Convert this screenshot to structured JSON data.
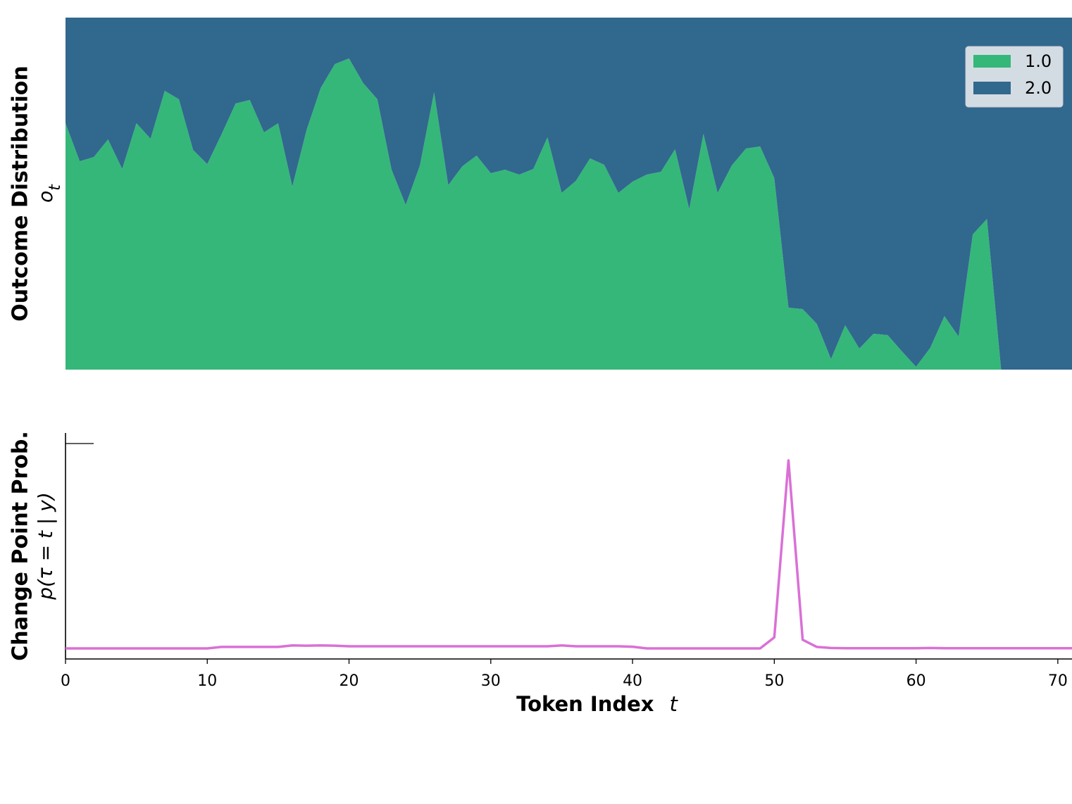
{
  "chart_data": [
    {
      "type": "stacked_area",
      "ylabel": "Outcome Distribution",
      "ylabel_symbol": [
        "o",
        "t"
      ],
      "x": [
        0,
        1,
        2,
        3,
        4,
        5,
        6,
        7,
        8,
        9,
        10,
        11,
        12,
        13,
        14,
        15,
        16,
        17,
        18,
        19,
        20,
        21,
        22,
        23,
        24,
        25,
        26,
        27,
        28,
        29,
        30,
        31,
        32,
        33,
        34,
        35,
        36,
        37,
        38,
        39,
        40,
        41,
        42,
        43,
        44,
        45,
        46,
        47,
        48,
        49,
        50,
        51,
        52,
        53,
        54,
        55,
        56,
        57,
        58,
        59,
        60,
        61,
        62,
        63,
        64,
        65,
        66,
        67,
        68,
        69,
        70,
        71
      ],
      "xlim": [
        0,
        71
      ],
      "ylim": [
        0,
        1
      ],
      "legend": "upper right",
      "series": [
        {
          "name": "1.0",
          "color": "#35b779",
          "values": [
            0.7,
            0.592,
            0.604,
            0.654,
            0.57,
            0.7,
            0.656,
            0.792,
            0.768,
            0.624,
            0.584,
            0.668,
            0.756,
            0.766,
            0.674,
            0.7,
            0.52,
            0.68,
            0.8,
            0.868,
            0.884,
            0.814,
            0.768,
            0.568,
            0.468,
            0.58,
            0.788,
            0.524,
            0.578,
            0.608,
            0.558,
            0.568,
            0.554,
            0.57,
            0.66,
            0.502,
            0.536,
            0.6,
            0.582,
            0.502,
            0.534,
            0.554,
            0.562,
            0.626,
            0.456,
            0.67,
            0.502,
            0.58,
            0.628,
            0.634,
            0.544,
            0.176,
            0.172,
            0.13,
            0.03,
            0.126,
            0.06,
            0.102,
            0.098,
            0.052,
            0.008,
            0.062,
            0.152,
            0.094,
            0.384,
            0.428,
            0,
            0,
            0,
            0,
            0,
            0
          ]
        },
        {
          "name": "2.0",
          "color": "#31688e",
          "values": [
            0.3,
            0.408,
            0.396,
            0.346,
            0.43,
            0.3,
            0.344,
            0.208,
            0.232,
            0.376,
            0.416,
            0.332,
            0.244,
            0.234,
            0.326,
            0.3,
            0.48,
            0.32,
            0.2,
            0.132,
            0.116,
            0.186,
            0.232,
            0.432,
            0.532,
            0.42,
            0.212,
            0.476,
            0.422,
            0.392,
            0.442,
            0.432,
            0.446,
            0.43,
            0.34,
            0.498,
            0.464,
            0.4,
            0.418,
            0.498,
            0.466,
            0.446,
            0.438,
            0.374,
            0.544,
            0.33,
            0.498,
            0.42,
            0.372,
            0.366,
            0.456,
            0.824,
            0.828,
            0.87,
            0.97,
            0.874,
            0.94,
            0.898,
            0.902,
            0.948,
            0.992,
            0.938,
            0.848,
            0.906,
            0.616,
            0.572,
            1,
            1,
            1,
            1,
            1,
            1
          ]
        }
      ]
    },
    {
      "type": "line",
      "ylabel": "Change Point Prob.",
      "ylabel_symbol": [
        "p(τ = t | y)"
      ],
      "xlabel": "Token Index",
      "xlabel_symbol": "t",
      "x": [
        0,
        1,
        2,
        3,
        4,
        5,
        6,
        7,
        8,
        9,
        10,
        11,
        12,
        13,
        14,
        15,
        16,
        17,
        18,
        19,
        20,
        21,
        22,
        23,
        24,
        25,
        26,
        27,
        28,
        29,
        30,
        31,
        32,
        33,
        34,
        35,
        36,
        37,
        38,
        39,
        40,
        41,
        42,
        43,
        44,
        45,
        46,
        47,
        48,
        49,
        50,
        51,
        52,
        53,
        54,
        55,
        56,
        57,
        58,
        59,
        60,
        61,
        62,
        63,
        64,
        65,
        66,
        67,
        68,
        69,
        70,
        71
      ],
      "xlim": [
        0,
        71
      ],
      "xticks": [
        0,
        10,
        20,
        30,
        40,
        50,
        60,
        70
      ],
      "ylim": [
        -0.05,
        1.02
      ],
      "series": [
        {
          "color": "#da70d6",
          "values": [
            0,
            0,
            0,
            0,
            0,
            0,
            0,
            0,
            0,
            0,
            0,
            0.007,
            0.007,
            0.007,
            0.007,
            0.007,
            0.014,
            0.013,
            0.014,
            0.013,
            0.01,
            0.01,
            0.01,
            0.01,
            0.01,
            0.01,
            0.01,
            0.01,
            0.01,
            0.01,
            0.01,
            0.01,
            0.01,
            0.01,
            0.01,
            0.014,
            0.01,
            0.01,
            0.01,
            0.01,
            0.008,
            0,
            0,
            0,
            0,
            0,
            0,
            0,
            0,
            0,
            0.052,
            0.89,
            0.041,
            0.007,
            0.002,
            0.001,
            0.001,
            0.001,
            0.001,
            0.001,
            0.001,
            0.002,
            0.001,
            0.001,
            0.001,
            0.001,
            0.001,
            0.001,
            0.001,
            0.001,
            0.001,
            0.001
          ]
        }
      ]
    }
  ]
}
